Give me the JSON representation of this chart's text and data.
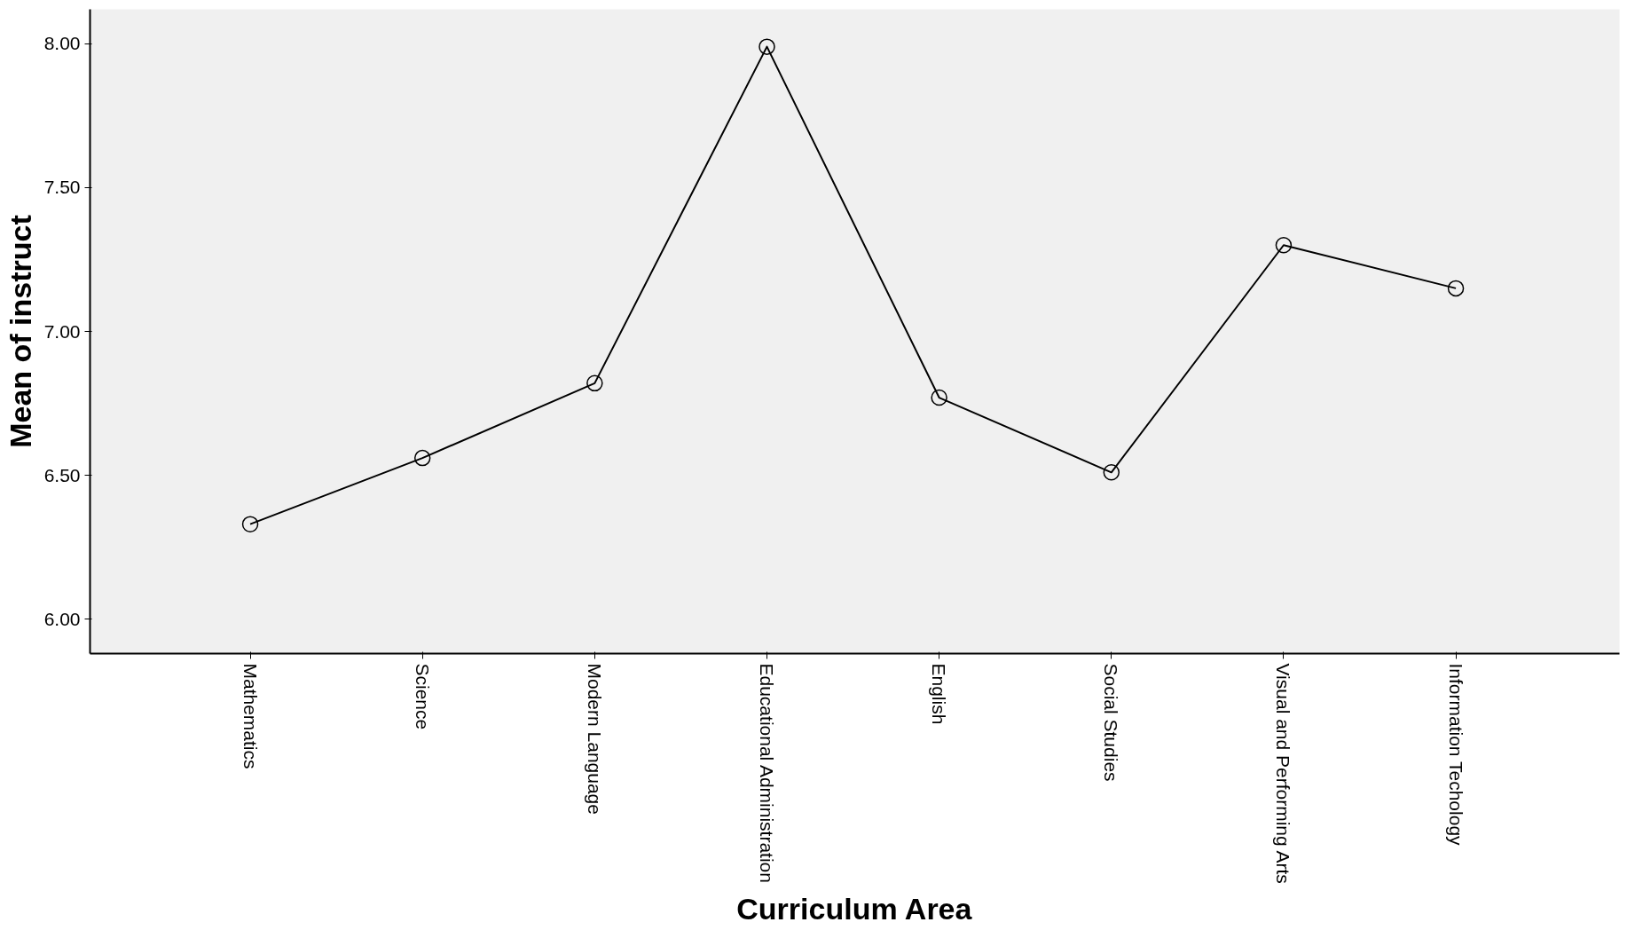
{
  "chart_data": {
    "type": "line",
    "xlabel": "Curriculum Area",
    "ylabel": "Mean of instruct",
    "categories": [
      "Mathematics",
      "Science",
      "Modern Language",
      "Educational Administration",
      "English",
      "Social Studies",
      "Visual and Performing Arts",
      "Information Techology"
    ],
    "series": [
      {
        "color": "#000000",
        "values": [
          6.33,
          6.56,
          6.82,
          7.99,
          6.77,
          6.51,
          7.3,
          7.15
        ]
      }
    ],
    "ylim": [
      5.88,
      8.12
    ],
    "yticks": [
      {
        "value": 6,
        "label": "6.00"
      },
      {
        "value": 6.5,
        "label": "6.50"
      },
      {
        "value": 7,
        "label": "7.00"
      },
      {
        "value": 7.5,
        "label": "7.50"
      },
      {
        "value": 8,
        "label": "8.00"
      }
    ],
    "marker": "circle",
    "line_style": "solid"
  }
}
